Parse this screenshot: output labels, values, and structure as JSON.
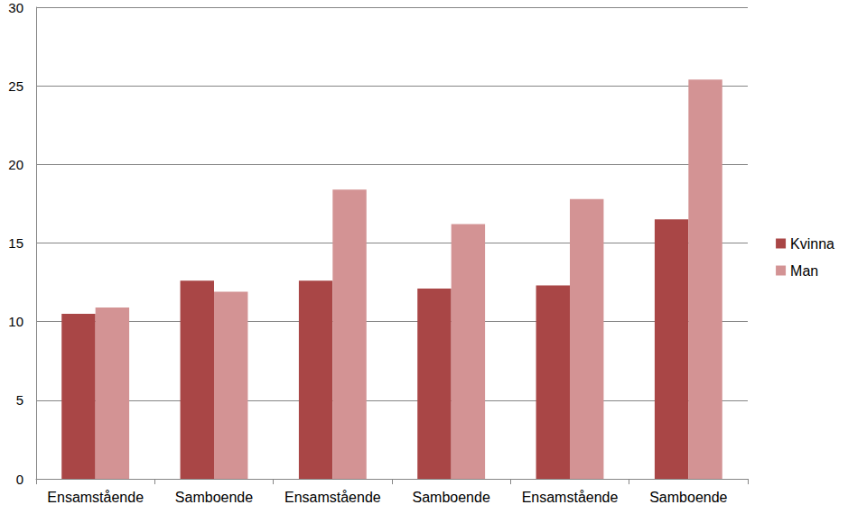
{
  "chart_data": {
    "type": "bar",
    "categories": [
      "Ensamstående",
      "Samboende",
      "Ensamstående",
      "Samboende",
      "Ensamstående",
      "Samboende"
    ],
    "series": [
      {
        "name": "Kvinna",
        "color": "#a94646",
        "values": [
          10.5,
          12.6,
          12.6,
          12.1,
          12.3,
          16.5
        ]
      },
      {
        "name": "Man",
        "color": "#d39394",
        "values": [
          10.9,
          11.9,
          18.4,
          16.2,
          17.8,
          25.4
        ]
      }
    ],
    "ylim": [
      0,
      30
    ],
    "yticks": [
      0,
      5,
      10,
      15,
      20,
      25,
      30
    ],
    "grid": true,
    "legend": "right"
  }
}
